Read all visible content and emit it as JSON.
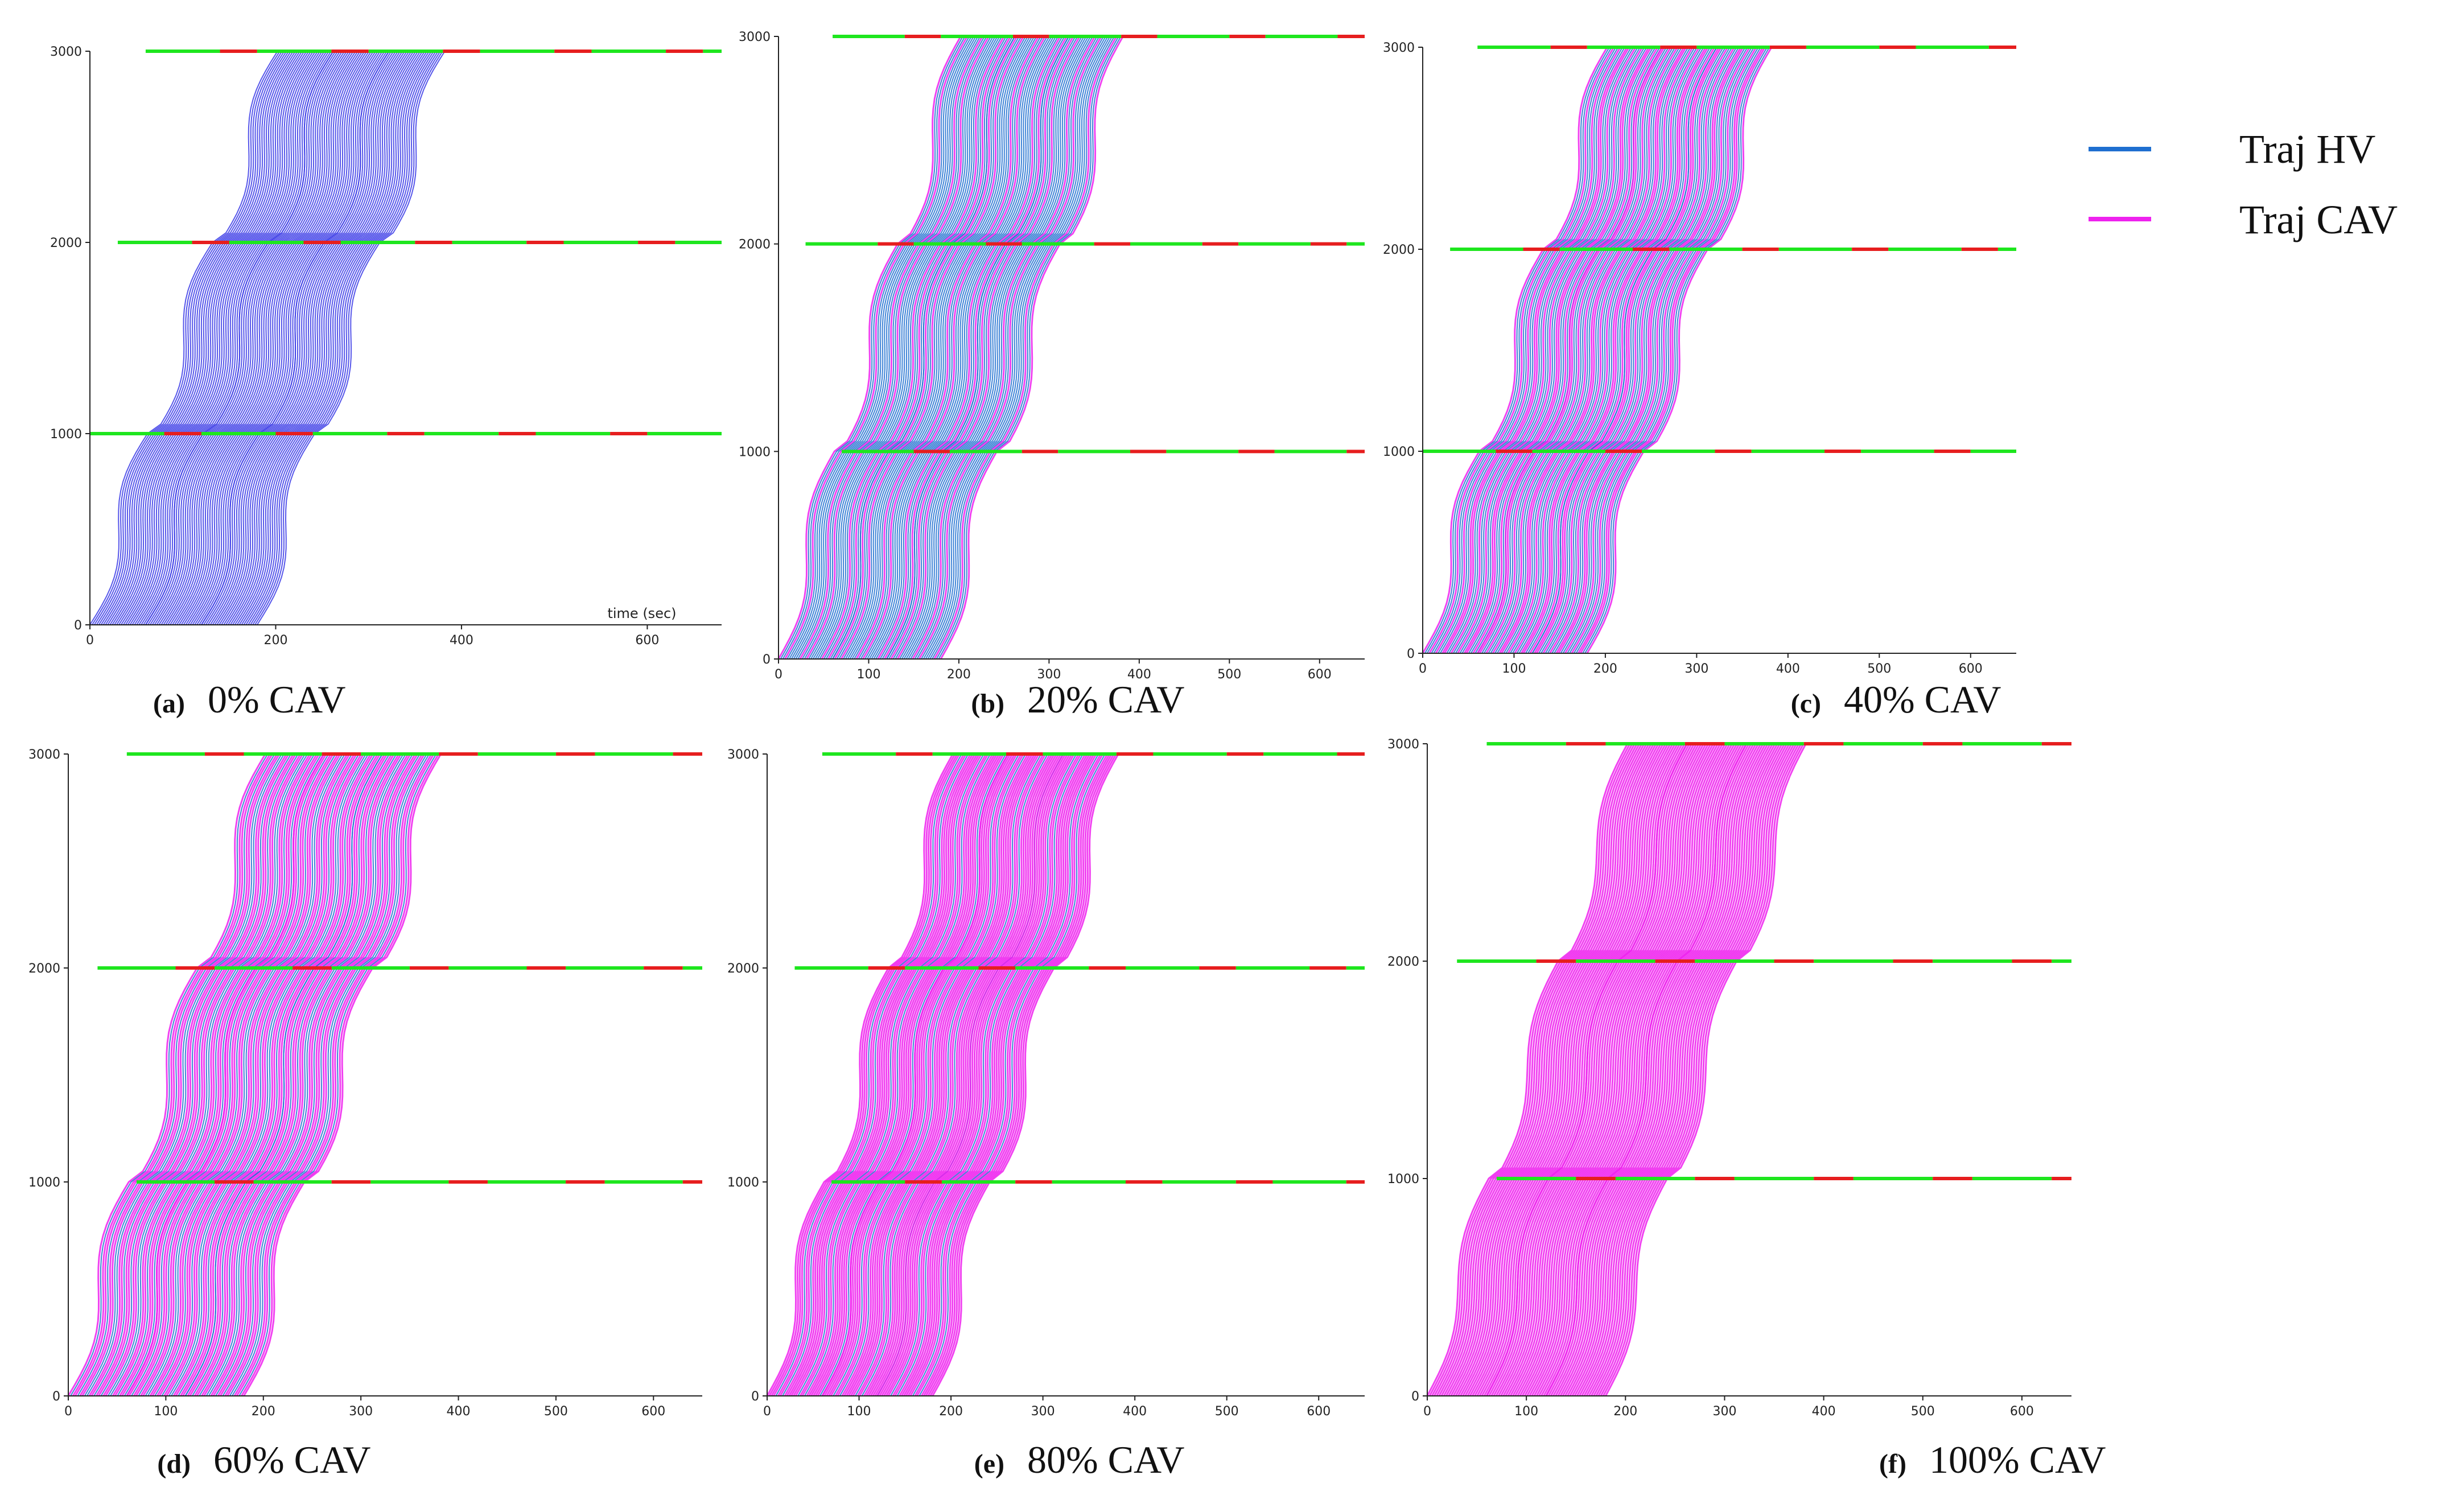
{
  "figure": {
    "legend": [
      {
        "label": "Traj HV",
        "color": "#1f6fd0"
      },
      {
        "label": "Traj CAV",
        "color": "#ee22ee"
      }
    ],
    "colors": {
      "signal_green": "#1ee61e",
      "signal_red": "#e61e1e",
      "hv_line": "#3a3ae6",
      "cav_line": "#ee22ee",
      "hv_dark": "#1010c0"
    },
    "signal_cycle_sec": 120,
    "signal_green_sec": 80,
    "signal_red_sec": 40
  },
  "chart_data": [
    {
      "type": "line",
      "panel_letter": "(a)",
      "caption": "0% CAV",
      "cav_share": 0,
      "xlabel": "time (sec)",
      "xlim": [
        0,
        680
      ],
      "ylim": [
        0,
        3000
      ],
      "xticks": [
        "0",
        "200",
        "400",
        "600"
      ],
      "yticks": [
        "0",
        "1000",
        "2000",
        "3000"
      ],
      "signal_positions": [
        1000,
        2000,
        3000
      ],
      "signal_extents": [
        [
          0,
          680
        ],
        [
          30,
          680
        ],
        [
          60,
          680
        ]
      ],
      "platoon_starts": [
        0,
        60,
        120
      ],
      "platoon_duration": 60,
      "free_flow_speed": 10
    },
    {
      "type": "line",
      "panel_letter": "(b)",
      "caption": "20% CAV",
      "cav_share": 20,
      "xlabel": "",
      "xlim": [
        0,
        650
      ],
      "ylim": [
        0,
        3000
      ],
      "xticks": [
        "0",
        "100",
        "200",
        "300",
        "400",
        "500",
        "600"
      ],
      "yticks": [
        "0",
        "1000",
        "2000",
        "3000"
      ],
      "signal_positions": [
        1000,
        2000,
        3000
      ],
      "signal_extents": [
        [
          70,
          650
        ],
        [
          30,
          650
        ],
        [
          60,
          650
        ]
      ],
      "platoon_starts": [
        0,
        60,
        120
      ],
      "platoon_duration": 60,
      "free_flow_speed": 10
    },
    {
      "type": "line",
      "panel_letter": "(c)",
      "caption": "40% CAV",
      "cav_share": 40,
      "xlabel": "",
      "xlim": [
        0,
        650
      ],
      "ylim": [
        0,
        3000
      ],
      "xticks": [
        "0",
        "100",
        "200",
        "300",
        "400",
        "500",
        "600"
      ],
      "yticks": [
        "0",
        "1000",
        "2000",
        "3000"
      ],
      "signal_positions": [
        1000,
        2000,
        3000
      ],
      "signal_extents": [
        [
          0,
          650
        ],
        [
          30,
          650
        ],
        [
          60,
          650
        ]
      ],
      "platoon_starts": [
        0,
        60,
        120
      ],
      "platoon_duration": 60,
      "free_flow_speed": 10
    },
    {
      "type": "line",
      "panel_letter": "(d)",
      "caption": "60% CAV",
      "cav_share": 60,
      "xlabel": "",
      "xlim": [
        0,
        650
      ],
      "ylim": [
        0,
        3000
      ],
      "xticks": [
        "0",
        "100",
        "200",
        "300",
        "400",
        "500",
        "600"
      ],
      "yticks": [
        "0",
        "1000",
        "2000",
        "3000"
      ],
      "signal_positions": [
        1000,
        2000,
        3000
      ],
      "signal_extents": [
        [
          70,
          650
        ],
        [
          30,
          650
        ],
        [
          60,
          650
        ]
      ],
      "platoon_starts": [
        0,
        60,
        120
      ],
      "platoon_duration": 60,
      "free_flow_speed": 10
    },
    {
      "type": "line",
      "panel_letter": "(e)",
      "caption": "80% CAV",
      "cav_share": 80,
      "xlabel": "",
      "xlim": [
        0,
        650
      ],
      "ylim": [
        0,
        3000
      ],
      "xticks": [
        "0",
        "100",
        "200",
        "300",
        "400",
        "500",
        "600"
      ],
      "yticks": [
        "0",
        "1000",
        "2000",
        "3000"
      ],
      "signal_positions": [
        1000,
        2000,
        3000
      ],
      "signal_extents": [
        [
          70,
          650
        ],
        [
          30,
          650
        ],
        [
          60,
          650
        ]
      ],
      "platoon_starts": [
        0,
        60,
        120
      ],
      "platoon_duration": 60,
      "free_flow_speed": 10
    },
    {
      "type": "line",
      "panel_letter": "(f)",
      "caption": "100% CAV",
      "cav_share": 100,
      "xlabel": "",
      "xlim": [
        0,
        650
      ],
      "ylim": [
        0,
        3000
      ],
      "xticks": [
        "0",
        "100",
        "200",
        "300",
        "400",
        "500",
        "600"
      ],
      "yticks": [
        "0",
        "1000",
        "2000",
        "3000"
      ],
      "signal_positions": [
        1000,
        2000,
        3000
      ],
      "signal_extents": [
        [
          70,
          650
        ],
        [
          30,
          650
        ],
        [
          60,
          650
        ]
      ],
      "platoon_starts": [
        0,
        60,
        120
      ],
      "platoon_duration": 60,
      "free_flow_speed": 10
    }
  ]
}
